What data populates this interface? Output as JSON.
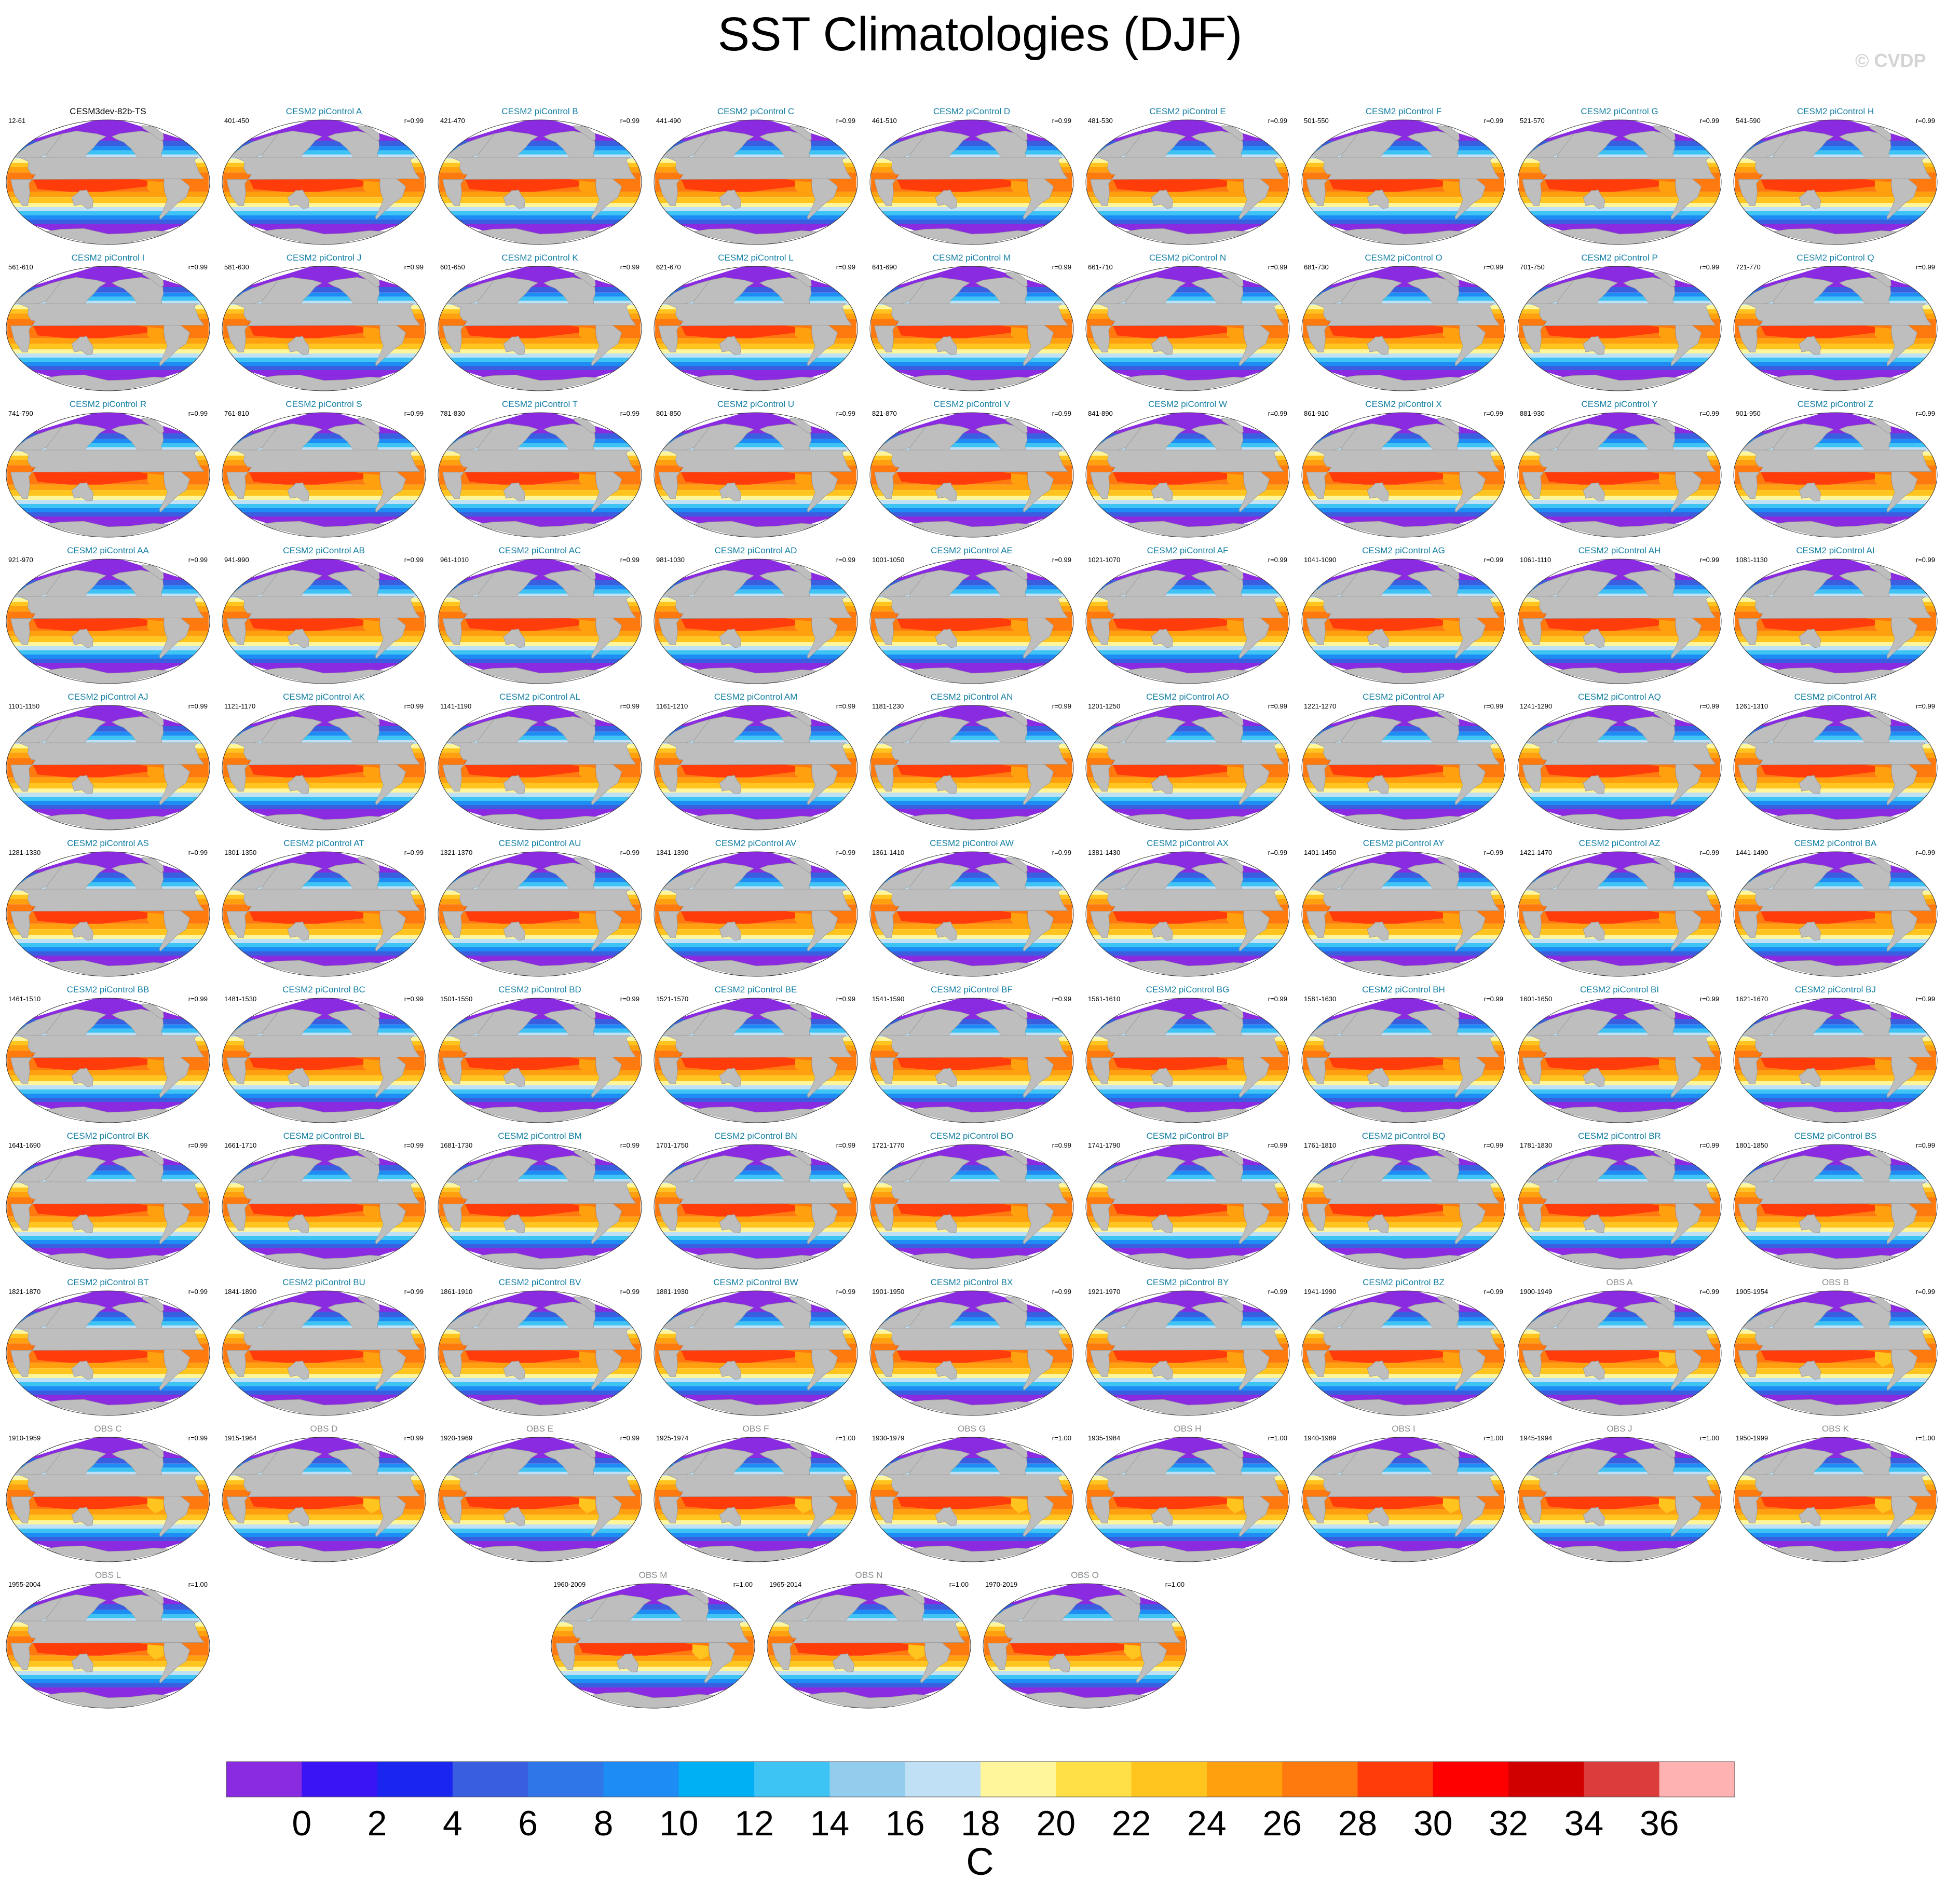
{
  "title": "SST Climatologies (DJF)",
  "copyright": "© CVDP",
  "colors": {
    "land": "#bebebe",
    "model_title": "#147fa4",
    "obs_title": "#8c8c8c",
    "control_title": "#000000"
  },
  "chart_data": {
    "type": "map-panel-grid",
    "description_field": "SST",
    "season": "DJF",
    "panels": [
      {
        "title": "CESM3dev-82b-TS",
        "years": "12-61",
        "r": "",
        "kind": "control",
        "icon": "world-map-robinson"
      },
      {
        "title": "CESM2 piControl A",
        "years": "401-450",
        "r": "r=0.99",
        "kind": "model",
        "icon": "world-map-robinson"
      },
      {
        "title": "CESM2 piControl B",
        "years": "421-470",
        "r": "r=0.99",
        "kind": "model",
        "icon": "world-map-robinson"
      },
      {
        "title": "CESM2 piControl C",
        "years": "441-490",
        "r": "r=0.99",
        "kind": "model",
        "icon": "world-map-robinson"
      },
      {
        "title": "CESM2 piControl D",
        "years": "461-510",
        "r": "r=0.99",
        "kind": "model",
        "icon": "world-map-robinson"
      },
      {
        "title": "CESM2 piControl E",
        "years": "481-530",
        "r": "r=0.99",
        "kind": "model",
        "icon": "world-map-robinson"
      },
      {
        "title": "CESM2 piControl F",
        "years": "501-550",
        "r": "r=0.99",
        "kind": "model",
        "icon": "world-map-robinson"
      },
      {
        "title": "CESM2 piControl G",
        "years": "521-570",
        "r": "r=0.99",
        "kind": "model",
        "icon": "world-map-robinson"
      },
      {
        "title": "CESM2 piControl H",
        "years": "541-590",
        "r": "r=0.99",
        "kind": "model",
        "icon": "world-map-robinson"
      },
      {
        "title": "CESM2 piControl I",
        "years": "561-610",
        "r": "r=0.99",
        "kind": "model",
        "icon": "world-map-robinson"
      },
      {
        "title": "CESM2 piControl J",
        "years": "581-630",
        "r": "r=0.99",
        "kind": "model",
        "icon": "world-map-robinson"
      },
      {
        "title": "CESM2 piControl K",
        "years": "601-650",
        "r": "r=0.99",
        "kind": "model",
        "icon": "world-map-robinson"
      },
      {
        "title": "CESM2 piControl L",
        "years": "621-670",
        "r": "r=0.99",
        "kind": "model",
        "icon": "world-map-robinson"
      },
      {
        "title": "CESM2 piControl M",
        "years": "641-690",
        "r": "r=0.99",
        "kind": "model",
        "icon": "world-map-robinson"
      },
      {
        "title": "CESM2 piControl N",
        "years": "661-710",
        "r": "r=0.99",
        "kind": "model",
        "icon": "world-map-robinson"
      },
      {
        "title": "CESM2 piControl O",
        "years": "681-730",
        "r": "r=0.99",
        "kind": "model",
        "icon": "world-map-robinson"
      },
      {
        "title": "CESM2 piControl P",
        "years": "701-750",
        "r": "r=0.99",
        "kind": "model",
        "icon": "world-map-robinson"
      },
      {
        "title": "CESM2 piControl Q",
        "years": "721-770",
        "r": "r=0.99",
        "kind": "model",
        "icon": "world-map-robinson"
      },
      {
        "title": "CESM2 piControl R",
        "years": "741-790",
        "r": "r=0.99",
        "kind": "model",
        "icon": "world-map-robinson"
      },
      {
        "title": "CESM2 piControl S",
        "years": "761-810",
        "r": "r=0.99",
        "kind": "model",
        "icon": "world-map-robinson"
      },
      {
        "title": "CESM2 piControl T",
        "years": "781-830",
        "r": "r=0.99",
        "kind": "model",
        "icon": "world-map-robinson"
      },
      {
        "title": "CESM2 piControl U",
        "years": "801-850",
        "r": "r=0.99",
        "kind": "model",
        "icon": "world-map-robinson"
      },
      {
        "title": "CESM2 piControl V",
        "years": "821-870",
        "r": "r=0.99",
        "kind": "model",
        "icon": "world-map-robinson"
      },
      {
        "title": "CESM2 piControl W",
        "years": "841-890",
        "r": "r=0.99",
        "kind": "model",
        "icon": "world-map-robinson"
      },
      {
        "title": "CESM2 piControl X",
        "years": "861-910",
        "r": "r=0.99",
        "kind": "model",
        "icon": "world-map-robinson"
      },
      {
        "title": "CESM2 piControl Y",
        "years": "881-930",
        "r": "r=0.99",
        "kind": "model",
        "icon": "world-map-robinson"
      },
      {
        "title": "CESM2 piControl Z",
        "years": "901-950",
        "r": "r=0.99",
        "kind": "model",
        "icon": "world-map-robinson"
      },
      {
        "title": "CESM2 piControl AA",
        "years": "921-970",
        "r": "r=0.99",
        "kind": "model",
        "icon": "world-map-robinson"
      },
      {
        "title": "CESM2 piControl AB",
        "years": "941-990",
        "r": "r=0.99",
        "kind": "model",
        "icon": "world-map-robinson"
      },
      {
        "title": "CESM2 piControl AC",
        "years": "961-1010",
        "r": "r=0.99",
        "kind": "model",
        "icon": "world-map-robinson"
      },
      {
        "title": "CESM2 piControl AD",
        "years": "981-1030",
        "r": "r=0.99",
        "kind": "model",
        "icon": "world-map-robinson"
      },
      {
        "title": "CESM2 piControl AE",
        "years": "1001-1050",
        "r": "r=0.99",
        "kind": "model",
        "icon": "world-map-robinson"
      },
      {
        "title": "CESM2 piControl AF",
        "years": "1021-1070",
        "r": "r=0.99",
        "kind": "model",
        "icon": "world-map-robinson"
      },
      {
        "title": "CESM2 piControl AG",
        "years": "1041-1090",
        "r": "r=0.99",
        "kind": "model",
        "icon": "world-map-robinson"
      },
      {
        "title": "CESM2 piControl AH",
        "years": "1061-1110",
        "r": "r=0.99",
        "kind": "model",
        "icon": "world-map-robinson"
      },
      {
        "title": "CESM2 piControl AI",
        "years": "1081-1130",
        "r": "r=0.99",
        "kind": "model",
        "icon": "world-map-robinson"
      },
      {
        "title": "CESM2 piControl AJ",
        "years": "1101-1150",
        "r": "r=0.99",
        "kind": "model",
        "icon": "world-map-robinson"
      },
      {
        "title": "CESM2 piControl AK",
        "years": "1121-1170",
        "r": "r=0.99",
        "kind": "model",
        "icon": "world-map-robinson"
      },
      {
        "title": "CESM2 piControl AL",
        "years": "1141-1190",
        "r": "r=0.99",
        "kind": "model",
        "icon": "world-map-robinson"
      },
      {
        "title": "CESM2 piControl AM",
        "years": "1161-1210",
        "r": "r=0.99",
        "kind": "model",
        "icon": "world-map-robinson"
      },
      {
        "title": "CESM2 piControl AN",
        "years": "1181-1230",
        "r": "r=0.99",
        "kind": "model",
        "icon": "world-map-robinson"
      },
      {
        "title": "CESM2 piControl AO",
        "years": "1201-1250",
        "r": "r=0.99",
        "kind": "model",
        "icon": "world-map-robinson"
      },
      {
        "title": "CESM2 piControl AP",
        "years": "1221-1270",
        "r": "r=0.99",
        "kind": "model",
        "icon": "world-map-robinson"
      },
      {
        "title": "CESM2 piControl AQ",
        "years": "1241-1290",
        "r": "r=0.99",
        "kind": "model",
        "icon": "world-map-robinson"
      },
      {
        "title": "CESM2 piControl AR",
        "years": "1261-1310",
        "r": "r=0.99",
        "kind": "model",
        "icon": "world-map-robinson"
      },
      {
        "title": "CESM2 piControl AS",
        "years": "1281-1330",
        "r": "r=0.99",
        "kind": "model",
        "icon": "world-map-robinson"
      },
      {
        "title": "CESM2 piControl AT",
        "years": "1301-1350",
        "r": "r=0.99",
        "kind": "model",
        "icon": "world-map-robinson"
      },
      {
        "title": "CESM2 piControl AU",
        "years": "1321-1370",
        "r": "r=0.99",
        "kind": "model",
        "icon": "world-map-robinson"
      },
      {
        "title": "CESM2 piControl AV",
        "years": "1341-1390",
        "r": "r=0.99",
        "kind": "model",
        "icon": "world-map-robinson"
      },
      {
        "title": "CESM2 piControl AW",
        "years": "1361-1410",
        "r": "r=0.99",
        "kind": "model",
        "icon": "world-map-robinson"
      },
      {
        "title": "CESM2 piControl AX",
        "years": "1381-1430",
        "r": "r=0.99",
        "kind": "model",
        "icon": "world-map-robinson"
      },
      {
        "title": "CESM2 piControl AY",
        "years": "1401-1450",
        "r": "r=0.99",
        "kind": "model",
        "icon": "world-map-robinson"
      },
      {
        "title": "CESM2 piControl AZ",
        "years": "1421-1470",
        "r": "r=0.99",
        "kind": "model",
        "icon": "world-map-robinson"
      },
      {
        "title": "CESM2 piControl BA",
        "years": "1441-1490",
        "r": "r=0.99",
        "kind": "model",
        "icon": "world-map-robinson"
      },
      {
        "title": "CESM2 piControl BB",
        "years": "1461-1510",
        "r": "r=0.99",
        "kind": "model",
        "icon": "world-map-robinson"
      },
      {
        "title": "CESM2 piControl BC",
        "years": "1481-1530",
        "r": "r=0.99",
        "kind": "model",
        "icon": "world-map-robinson"
      },
      {
        "title": "CESM2 piControl BD",
        "years": "1501-1550",
        "r": "r=0.99",
        "kind": "model",
        "icon": "world-map-robinson"
      },
      {
        "title": "CESM2 piControl BE",
        "years": "1521-1570",
        "r": "r=0.99",
        "kind": "model",
        "icon": "world-map-robinson"
      },
      {
        "title": "CESM2 piControl BF",
        "years": "1541-1590",
        "r": "r=0.99",
        "kind": "model",
        "icon": "world-map-robinson"
      },
      {
        "title": "CESM2 piControl BG",
        "years": "1561-1610",
        "r": "r=0.99",
        "kind": "model",
        "icon": "world-map-robinson"
      },
      {
        "title": "CESM2 piControl BH",
        "years": "1581-1630",
        "r": "r=0.99",
        "kind": "model",
        "icon": "world-map-robinson"
      },
      {
        "title": "CESM2 piControl BI",
        "years": "1601-1650",
        "r": "r=0.99",
        "kind": "model",
        "icon": "world-map-robinson"
      },
      {
        "title": "CESM2 piControl BJ",
        "years": "1621-1670",
        "r": "r=0.99",
        "kind": "model",
        "icon": "world-map-robinson"
      },
      {
        "title": "CESM2 piControl BK",
        "years": "1641-1690",
        "r": "r=0.99",
        "kind": "model",
        "icon": "world-map-robinson"
      },
      {
        "title": "CESM2 piControl BL",
        "years": "1661-1710",
        "r": "r=0.99",
        "kind": "model",
        "icon": "world-map-robinson"
      },
      {
        "title": "CESM2 piControl BM",
        "years": "1681-1730",
        "r": "r=0.99",
        "kind": "model",
        "icon": "world-map-robinson"
      },
      {
        "title": "CESM2 piControl BN",
        "years": "1701-1750",
        "r": "r=0.99",
        "kind": "model",
        "icon": "world-map-robinson"
      },
      {
        "title": "CESM2 piControl BO",
        "years": "1721-1770",
        "r": "r=0.99",
        "kind": "model",
        "icon": "world-map-robinson"
      },
      {
        "title": "CESM2 piControl BP",
        "years": "1741-1790",
        "r": "r=0.99",
        "kind": "model",
        "icon": "world-map-robinson"
      },
      {
        "title": "CESM2 piControl BQ",
        "years": "1761-1810",
        "r": "r=0.99",
        "kind": "model",
        "icon": "world-map-robinson"
      },
      {
        "title": "CESM2 piControl BR",
        "years": "1781-1830",
        "r": "r=0.99",
        "kind": "model",
        "icon": "world-map-robinson"
      },
      {
        "title": "CESM2 piControl BS",
        "years": "1801-1850",
        "r": "r=0.99",
        "kind": "model",
        "icon": "world-map-robinson"
      },
      {
        "title": "CESM2 piControl BT",
        "years": "1821-1870",
        "r": "r=0.99",
        "kind": "model",
        "icon": "world-map-robinson"
      },
      {
        "title": "CESM2 piControl BU",
        "years": "1841-1890",
        "r": "r=0.99",
        "kind": "model",
        "icon": "world-map-robinson"
      },
      {
        "title": "CESM2 piControl BV",
        "years": "1861-1910",
        "r": "r=0.99",
        "kind": "model",
        "icon": "world-map-robinson"
      },
      {
        "title": "CESM2 piControl BW",
        "years": "1881-1930",
        "r": "r=0.99",
        "kind": "model",
        "icon": "world-map-robinson"
      },
      {
        "title": "CESM2 piControl BX",
        "years": "1901-1950",
        "r": "r=0.99",
        "kind": "model",
        "icon": "world-map-robinson"
      },
      {
        "title": "CESM2 piControl BY",
        "years": "1921-1970",
        "r": "r=0.99",
        "kind": "model",
        "icon": "world-map-robinson"
      },
      {
        "title": "CESM2 piControl BZ",
        "years": "1941-1990",
        "r": "r=0.99",
        "kind": "model",
        "icon": "world-map-robinson"
      },
      {
        "title": "OBS A",
        "years": "1900-1949",
        "r": "r=0.99",
        "kind": "obs",
        "icon": "world-map-robinson"
      },
      {
        "title": "OBS B",
        "years": "1905-1954",
        "r": "r=0.99",
        "kind": "obs",
        "icon": "world-map-robinson"
      },
      {
        "title": "OBS C",
        "years": "1910-1959",
        "r": "r=0.99",
        "kind": "obs",
        "icon": "world-map-robinson"
      },
      {
        "title": "OBS D",
        "years": "1915-1964",
        "r": "r=0.99",
        "kind": "obs",
        "icon": "world-map-robinson"
      },
      {
        "title": "OBS E",
        "years": "1920-1969",
        "r": "r=0.99",
        "kind": "obs",
        "icon": "world-map-robinson"
      },
      {
        "title": "OBS F",
        "years": "1925-1974",
        "r": "r=1.00",
        "kind": "obs",
        "icon": "world-map-robinson"
      },
      {
        "title": "OBS G",
        "years": "1930-1979",
        "r": "r=1.00",
        "kind": "obs",
        "icon": "world-map-robinson"
      },
      {
        "title": "OBS H",
        "years": "1935-1984",
        "r": "r=1.00",
        "kind": "obs",
        "icon": "world-map-robinson"
      },
      {
        "title": "OBS I",
        "years": "1940-1989",
        "r": "r=1.00",
        "kind": "obs",
        "icon": "world-map-robinson"
      },
      {
        "title": "OBS J",
        "years": "1945-1994",
        "r": "r=1.00",
        "kind": "obs",
        "icon": "world-map-robinson"
      },
      {
        "title": "OBS K",
        "years": "1950-1999",
        "r": "r=1.00",
        "kind": "obs",
        "icon": "world-map-robinson"
      },
      {
        "title": "OBS L",
        "years": "1955-2004",
        "r": "r=1.00",
        "kind": "obs",
        "icon": "world-map-robinson"
      },
      {
        "title": "OBS M",
        "years": "1960-2009",
        "r": "r=1.00",
        "kind": "obs",
        "icon": "world-map-robinson"
      },
      {
        "title": "OBS N",
        "years": "1965-2014",
        "r": "r=1.00",
        "kind": "obs",
        "icon": "world-map-robinson"
      },
      {
        "title": "OBS O",
        "years": "1970-2019",
        "r": "r=1.00",
        "kind": "obs",
        "icon": "world-map-robinson"
      }
    ],
    "colorbar": {
      "unit": "C",
      "levels": [
        0,
        2,
        4,
        6,
        8,
        10,
        12,
        14,
        16,
        18,
        20,
        22,
        24,
        26,
        28,
        30,
        32,
        34,
        36
      ],
      "tick_labels": [
        "0",
        "2",
        "4",
        "6",
        "8",
        "10",
        "12",
        "14",
        "16",
        "18",
        "20",
        "22",
        "24",
        "26",
        "28",
        "30",
        "32",
        "34",
        "36"
      ],
      "colors": [
        "#8a2be2",
        "#3b14f5",
        "#1a25f0",
        "#3a5ee0",
        "#2f76e8",
        "#1e8cf5",
        "#00b0f5",
        "#3ec3f5",
        "#93cdee",
        "#bfe0f5",
        "#fff59a",
        "#ffe046",
        "#ffc51e",
        "#ffa00e",
        "#ff7a0e",
        "#ff3c0a",
        "#ff0000",
        "#d00000",
        "#dc3c3c",
        "#ffb2b2"
      ]
    }
  }
}
